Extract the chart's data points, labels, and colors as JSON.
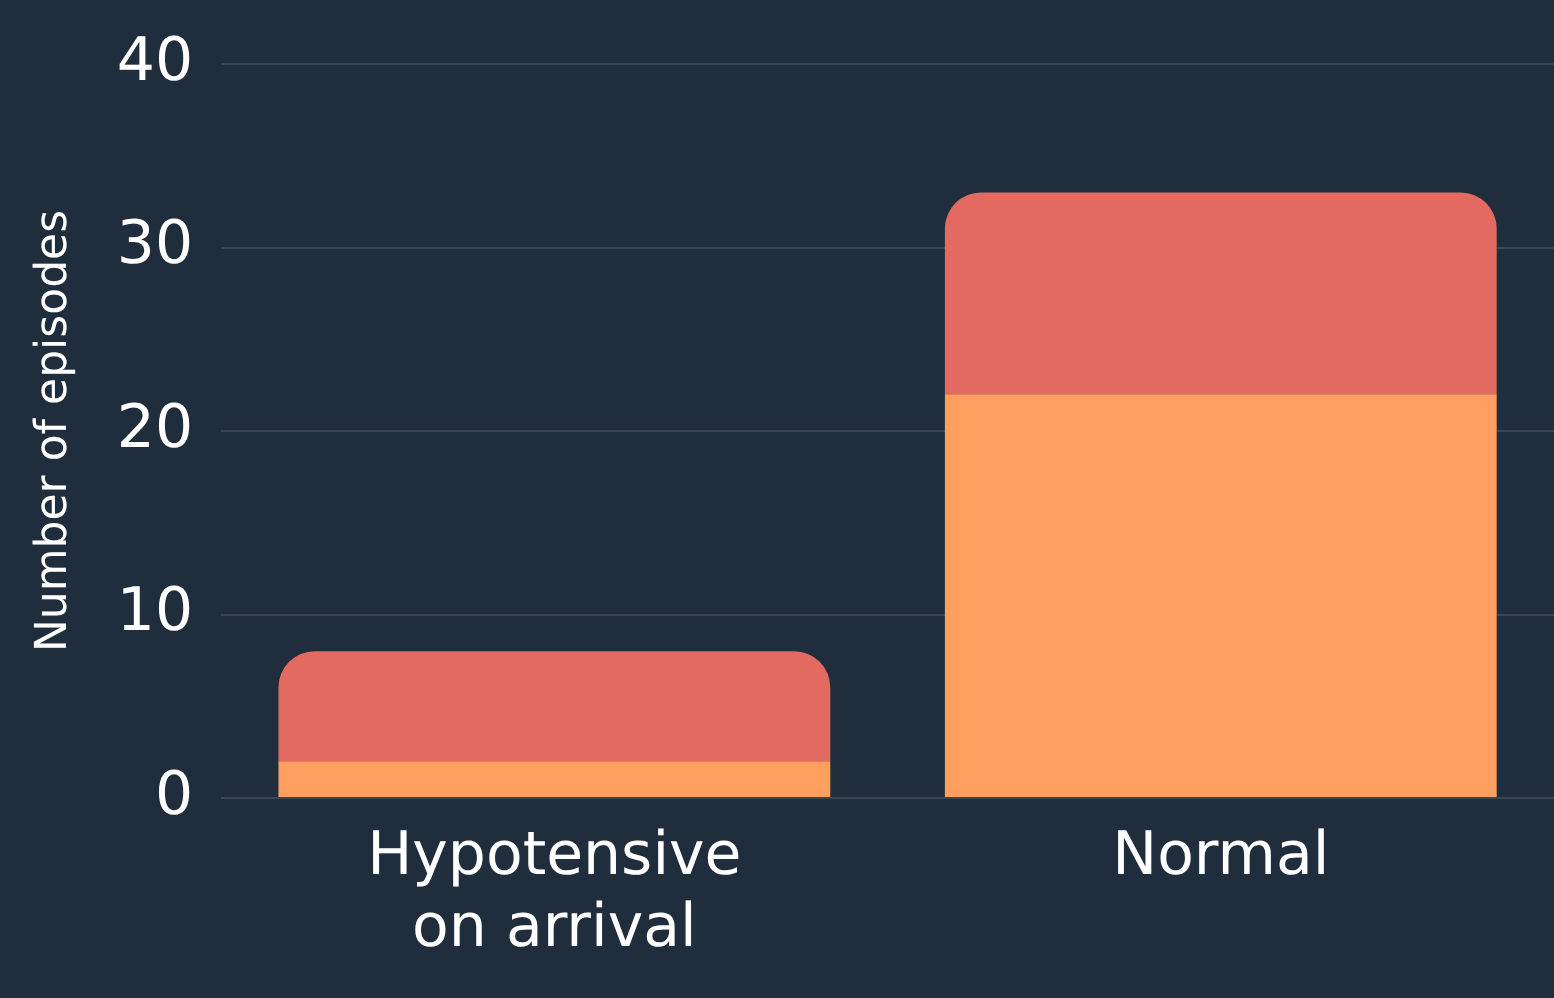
{
  "chart_data": {
    "type": "bar",
    "stacked": true,
    "ylabel": "Number of episodes",
    "categories": [
      "Hypotensive\non arrival",
      "Normal"
    ],
    "series": [
      {
        "color": "#ff9f5f",
        "values": [
          2,
          22
        ]
      },
      {
        "color": "#e26a60",
        "values": [
          6,
          11
        ]
      }
    ],
    "ylim": [
      0,
      40
    ],
    "yticks": [
      0,
      10,
      20,
      30,
      40
    ],
    "grid": "y",
    "legend": false
  }
}
